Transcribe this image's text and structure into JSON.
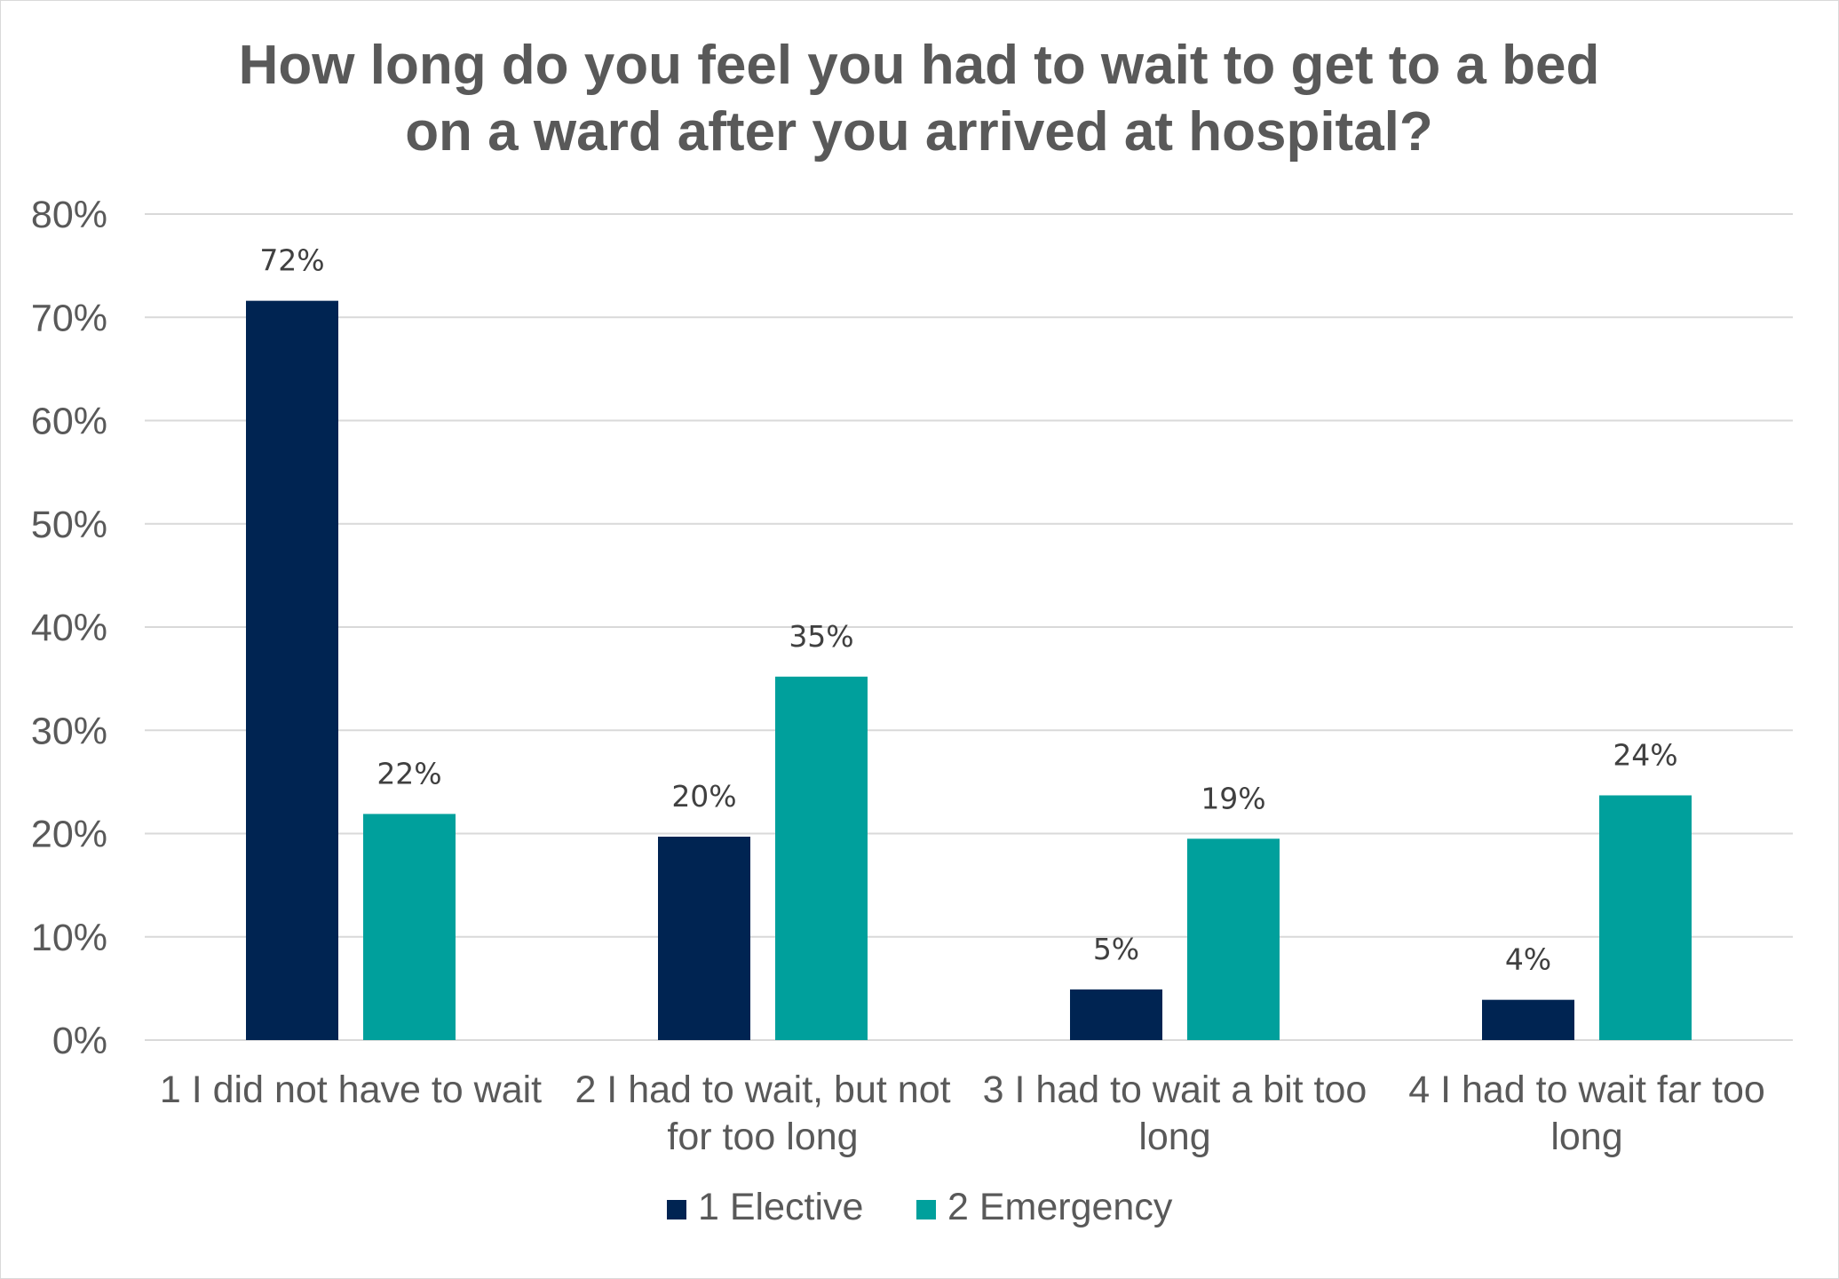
{
  "chart_data": {
    "type": "bar",
    "title": "How long do you feel you had to wait to get to a bed on a ward after you arrived at hospital?",
    "title_lines": [
      "How long do you feel you had to wait to get to a bed",
      "on a ward after you arrived at hospital?"
    ],
    "categories": [
      [
        "1 I did not have to wait"
      ],
      [
        "2 I had to wait, but not",
        "for too long"
      ],
      [
        "3 I had to wait a bit too",
        "long"
      ],
      [
        "4 I had to wait far too",
        "long"
      ]
    ],
    "series": [
      {
        "name": "1 Elective",
        "color": "#002452",
        "values": [
          71.6,
          19.7,
          4.9,
          3.9
        ],
        "labels": [
          "72%",
          "20%",
          "5%",
          "4%"
        ]
      },
      {
        "name": "2 Emergency",
        "color": "#00A09C",
        "values": [
          21.9,
          35.2,
          19.5,
          23.7
        ],
        "labels": [
          "22%",
          "35%",
          "19%",
          "24%"
        ]
      }
    ],
    "ylim": [
      0,
      80
    ],
    "yticks": [
      0,
      10,
      20,
      30,
      40,
      50,
      60,
      70,
      80
    ],
    "ytick_labels": [
      "0%",
      "10%",
      "20%",
      "30%",
      "40%",
      "50%",
      "60%",
      "70%",
      "80%"
    ],
    "grid": true,
    "gridline_color": "#d9d9d9",
    "legend_position": "bottom"
  }
}
